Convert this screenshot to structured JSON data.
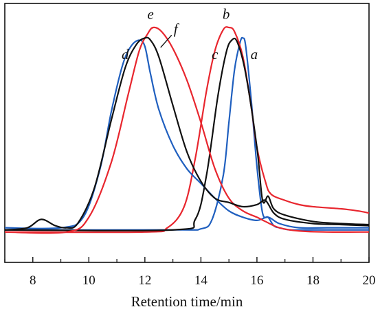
{
  "chart_data": {
    "type": "line",
    "title": "",
    "xlabel": "Retention time/min",
    "ylabel": "",
    "xlim": [
      7,
      20
    ],
    "ylim": [
      0,
      1
    ],
    "x_ticks": [
      8,
      10,
      12,
      14,
      16,
      18,
      20
    ],
    "x_tick_labels": [
      "8",
      "10",
      "12",
      "14",
      "16",
      "18",
      "20"
    ],
    "grid": false,
    "legend": "none",
    "series": [
      {
        "name": "a",
        "color": "#1f5fbf",
        "x": [
          7.0,
          13.0,
          14.0,
          14.4,
          14.8,
          15.0,
          15.2,
          15.4,
          15.5,
          15.6,
          15.8,
          16.0,
          16.2,
          16.4,
          16.6,
          16.8,
          17.2,
          18.0,
          20.0
        ],
        "y": [
          0.04,
          0.04,
          0.045,
          0.09,
          0.3,
          0.55,
          0.8,
          0.93,
          0.95,
          0.91,
          0.65,
          0.34,
          0.12,
          0.1,
          0.06,
          0.05,
          0.04,
          0.04,
          0.04
        ]
      },
      {
        "name": "b",
        "color": "#e8262e",
        "x": [
          7.0,
          12.0,
          12.8,
          13.4,
          13.8,
          14.2,
          14.5,
          14.8,
          15.0,
          15.2,
          15.5,
          15.8,
          16.0,
          16.3,
          16.5,
          17.0,
          17.5,
          18.0,
          19.0,
          19.6,
          20.0
        ],
        "y": [
          0.03,
          0.03,
          0.05,
          0.15,
          0.38,
          0.7,
          0.89,
          0.99,
          1.0,
          0.98,
          0.86,
          0.62,
          0.43,
          0.27,
          0.21,
          0.18,
          0.16,
          0.15,
          0.14,
          0.13,
          0.12
        ]
      },
      {
        "name": "c",
        "color": "#111111",
        "x": [
          7.0,
          13.0,
          13.8,
          14.2,
          14.6,
          14.9,
          15.1,
          15.3,
          15.6,
          16.0,
          16.2,
          16.4,
          16.6,
          17.0,
          18.0,
          19.0,
          20.0
        ],
        "y": [
          0.04,
          0.04,
          0.09,
          0.3,
          0.67,
          0.88,
          0.94,
          0.93,
          0.78,
          0.43,
          0.18,
          0.2,
          0.14,
          0.11,
          0.08,
          0.07,
          0.065
        ]
      },
      {
        "name": "d",
        "color": "#1f5fbf",
        "x": [
          7.0,
          9.0,
          9.8,
          10.4,
          10.8,
          11.2,
          11.5,
          11.8,
          12.0,
          12.2,
          12.5,
          13.0,
          13.5,
          14.0,
          14.5,
          15.0,
          15.5,
          16.0,
          16.4,
          16.8,
          17.5,
          18.5,
          20.0
        ],
        "y": [
          0.05,
          0.05,
          0.1,
          0.33,
          0.6,
          0.82,
          0.91,
          0.94,
          0.91,
          0.78,
          0.61,
          0.44,
          0.33,
          0.26,
          0.19,
          0.13,
          0.1,
          0.085,
          0.1,
          0.07,
          0.05,
          0.05,
          0.05
        ]
      },
      {
        "name": "e",
        "color": "#e8262e",
        "x": [
          7.0,
          9.2,
          10.0,
          10.8,
          11.4,
          11.8,
          12.1,
          12.3,
          12.6,
          13.0,
          13.5,
          14.0,
          14.5,
          15.0,
          15.5,
          16.0,
          16.3,
          16.8,
          17.5,
          18.5,
          20.0
        ],
        "y": [
          0.03,
          0.03,
          0.1,
          0.36,
          0.68,
          0.89,
          0.97,
          1.0,
          0.98,
          0.9,
          0.75,
          0.55,
          0.33,
          0.19,
          0.13,
          0.1,
          0.08,
          0.05,
          0.035,
          0.03,
          0.03
        ]
      },
      {
        "name": "f",
        "color": "#111111",
        "x": [
          7.0,
          7.8,
          8.3,
          8.8,
          9.2,
          9.6,
          10.2,
          10.8,
          11.3,
          11.7,
          12.0,
          12.2,
          12.5,
          13.0,
          13.5,
          14.0,
          14.5,
          15.0,
          15.5,
          16.0,
          16.3,
          16.6,
          17.0,
          18.0,
          19.0,
          20.0
        ],
        "y": [
          0.04,
          0.05,
          0.09,
          0.06,
          0.05,
          0.07,
          0.24,
          0.56,
          0.81,
          0.92,
          0.95,
          0.94,
          0.86,
          0.63,
          0.41,
          0.27,
          0.19,
          0.17,
          0.15,
          0.16,
          0.18,
          0.12,
          0.09,
          0.07,
          0.065,
          0.06
        ]
      }
    ],
    "annotations": [
      {
        "text": "a",
        "x": 15.9,
        "y": 0.85
      },
      {
        "text": "b",
        "x": 14.9,
        "y": 1.04
      },
      {
        "text": "c",
        "x": 14.5,
        "y": 0.85
      },
      {
        "text": "d",
        "x": 11.3,
        "y": 0.85
      },
      {
        "text": "e",
        "x": 12.2,
        "y": 1.04
      },
      {
        "text": "f",
        "x": 13.1,
        "y": 0.97
      }
    ]
  }
}
